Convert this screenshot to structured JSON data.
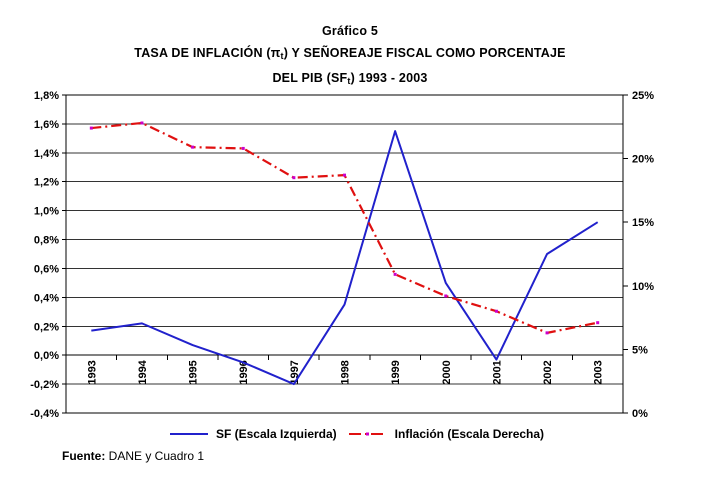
{
  "title": {
    "line1": "Gráfico 5",
    "line2_pre": "TASA DE INFLACIÓN (π",
    "line2_sub": "t",
    "line2_post": ") Y SEÑOREAJE FISCAL COMO PORCENTAJE",
    "line3_pre": "DEL PIB (SF",
    "line3_sub": "t",
    "line3_post": ") 1993 - 2003"
  },
  "footer": {
    "label": "Fuente:",
    "text": " DANE y Cuadro 1"
  },
  "colors": {
    "sf_line": "#2121CC",
    "inflacion_line": "#E01010",
    "inflacion_marker": "#CC00CC",
    "gridline": "#333333",
    "text": "#000000"
  },
  "chart_data": {
    "type": "line",
    "title": "TASA DE INFLACIÓN (πt) Y SEÑOREAJE FISCAL COMO PORCENTAJE DEL PIB (SFt) 1993 - 2003",
    "categories": [
      "1993",
      "1994",
      "1995",
      "1996",
      "1997",
      "1998",
      "1999",
      "2000",
      "2001",
      "2002",
      "2003"
    ],
    "series": [
      {
        "name": "SF (Escala Izquierda)",
        "axis": "left",
        "style": "solid",
        "color": "#2121CC",
        "values": [
          0.17,
          0.22,
          0.07,
          -0.05,
          -0.2,
          0.35,
          1.55,
          0.5,
          -0.03,
          0.7,
          0.92
        ]
      },
      {
        "name": "Inflación (Escala Derecha)",
        "axis": "right",
        "style": "dash-dot",
        "color": "#E01010",
        "marker_color": "#CC00CC",
        "values": [
          22.4,
          22.8,
          20.9,
          20.8,
          18.5,
          18.7,
          10.9,
          9.2,
          8.0,
          6.3,
          7.1
        ]
      }
    ],
    "left_axis": {
      "min": -0.4,
      "max": 1.8,
      "tick_values": [
        1.8,
        1.6,
        1.4,
        1.2,
        1.0,
        0.8,
        0.6,
        0.4,
        0.2,
        0.0,
        -0.2,
        -0.4
      ],
      "tick_labels": [
        "1,8%",
        "1,6%",
        "1,4%",
        "1,2%",
        "1,0%",
        "0,8%",
        "0,6%",
        "0,4%",
        "0,2%",
        "0,0%",
        "-0,2%",
        "-0,4%"
      ]
    },
    "right_axis": {
      "min": 0,
      "max": 25,
      "tick_values": [
        25,
        20,
        15,
        10,
        5,
        0
      ],
      "tick_labels": [
        "25%",
        "20%",
        "15%",
        "10%",
        "5%",
        "0%"
      ]
    },
    "gridlines": true,
    "legend_position": "bottom"
  }
}
